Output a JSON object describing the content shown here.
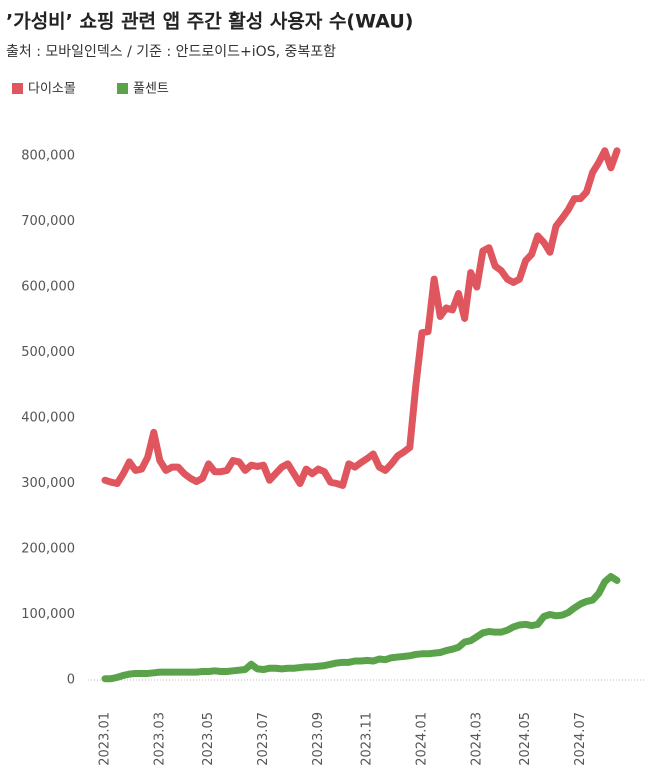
{
  "chart_data": {
    "type": "line",
    "title": "’가성비’ 쇼핑 관련 앱 주간 활성 사용자 수(WAU)",
    "subtitle": "출처 : 모바일인덱스 / 기준 : 안드로이드+iOS, 중복포함",
    "categories": [
      "2023.01",
      null,
      null,
      null,
      null,
      null,
      null,
      null,
      null,
      "2023.03",
      null,
      null,
      null,
      null,
      null,
      null,
      null,
      "2023.05",
      null,
      null,
      null,
      null,
      null,
      null,
      null,
      null,
      "2023.07",
      null,
      null,
      null,
      null,
      null,
      null,
      null,
      null,
      "2023.09",
      null,
      null,
      null,
      null,
      null,
      null,
      null,
      "2023.11",
      null,
      null,
      null,
      null,
      null,
      null,
      null,
      null,
      "2024.01",
      null,
      null,
      null,
      null,
      null,
      null,
      null,
      null,
      "2024.03",
      null,
      null,
      null,
      null,
      null,
      null,
      null,
      "2024.05",
      null,
      null,
      null,
      null,
      null,
      null,
      null,
      null,
      "2024.07",
      null,
      null,
      null,
      null,
      null,
      null
    ],
    "series": [
      {
        "name": "다이소몰",
        "color": "#e0565e",
        "values": [
          305000,
          302000,
          300000,
          315000,
          333000,
          320000,
          322000,
          340000,
          378000,
          335000,
          320000,
          325000,
          325000,
          315000,
          308000,
          303000,
          308000,
          330000,
          318000,
          318000,
          320000,
          335000,
          333000,
          320000,
          328000,
          326000,
          328000,
          305000,
          315000,
          325000,
          330000,
          315000,
          300000,
          322000,
          315000,
          322000,
          318000,
          302000,
          300000,
          297000,
          330000,
          325000,
          332000,
          338000,
          345000,
          325000,
          320000,
          330000,
          342000,
          348000,
          355000,
          450000,
          530000,
          532000,
          612000,
          555000,
          568000,
          565000,
          590000,
          552000,
          622000,
          600000,
          655000,
          660000,
          632000,
          625000,
          612000,
          607000,
          612000,
          640000,
          650000,
          678000,
          668000,
          653000,
          693000,
          705000,
          718000,
          735000,
          735000,
          745000,
          775000,
          790000,
          808000,
          782000,
          808000
        ]
      },
      {
        "name": "풀센트",
        "color": "#5aa34a",
        "values": [
          2000,
          2000,
          4000,
          7000,
          9000,
          10000,
          10000,
          10000,
          11000,
          12000,
          12000,
          12000,
          12000,
          12000,
          12000,
          12000,
          13000,
          13000,
          14000,
          13000,
          13000,
          14000,
          15000,
          16000,
          24000,
          17000,
          16000,
          18000,
          18000,
          17000,
          18000,
          18000,
          19000,
          20000,
          20000,
          21000,
          22000,
          24000,
          26000,
          27000,
          27000,
          29000,
          29000,
          30000,
          29000,
          32000,
          31000,
          34000,
          35000,
          36000,
          37000,
          39000,
          40000,
          40000,
          41000,
          42000,
          45000,
          47000,
          50000,
          58000,
          60000,
          66000,
          72000,
          74000,
          73000,
          73000,
          76000,
          81000,
          84000,
          85000,
          83000,
          85000,
          97000,
          100000,
          98000,
          99000,
          103000,
          110000,
          116000,
          120000,
          122000,
          132000,
          150000,
          158000,
          152000
        ]
      }
    ],
    "ylim": [
      0,
      800000
    ],
    "yticks": [
      0,
      {
        "value": 100000,
        "label": "100,000"
      },
      {
        "value": 200000,
        "label": "200,000"
      },
      {
        "value": 300000,
        "label": "300,000"
      },
      {
        "value": 400000,
        "label": "400,000"
      },
      {
        "value": 500000,
        "label": "500,000"
      },
      {
        "value": 600000,
        "label": "600,000"
      },
      {
        "value": 700000,
        "label": "700,000"
      },
      {
        "value": 800000,
        "label": "800,000"
      }
    ],
    "legend": "top-left"
  }
}
